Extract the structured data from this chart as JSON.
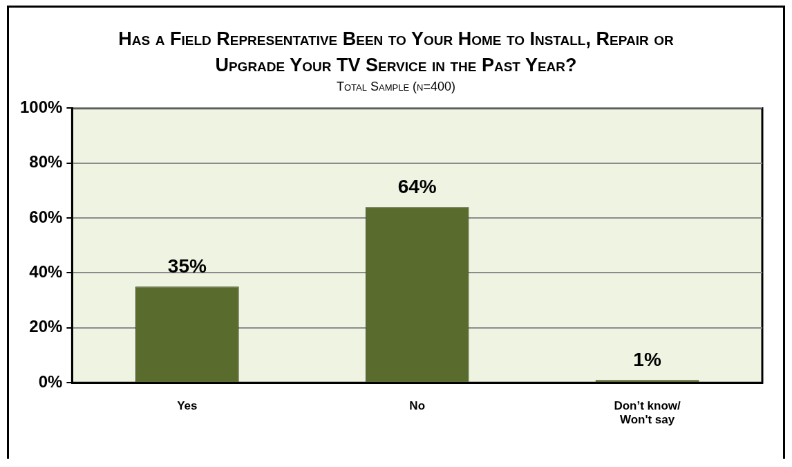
{
  "chart_data": {
    "type": "bar",
    "title": "Has a Field Representative Been to Your Home to Install, Repair or Upgrade Your TV Service in the Past Year?",
    "subtitle": "Total Sample (n=400)",
    "categories": [
      "Yes",
      "No",
      "Don’t know/ Won't say"
    ],
    "values": [
      35,
      64,
      1
    ],
    "value_labels": [
      "35%",
      "64%",
      "1%"
    ],
    "color": "#5a6b2e",
    "ylim": [
      0,
      100
    ],
    "yticks": [
      {
        "value": 0,
        "label": "0%"
      },
      {
        "value": 20,
        "label": "20%"
      },
      {
        "value": 40,
        "label": "40%"
      },
      {
        "value": 60,
        "label": "60%"
      },
      {
        "value": 80,
        "label": "80%"
      },
      {
        "value": 100,
        "label": "100%"
      }
    ],
    "grid": "y"
  }
}
